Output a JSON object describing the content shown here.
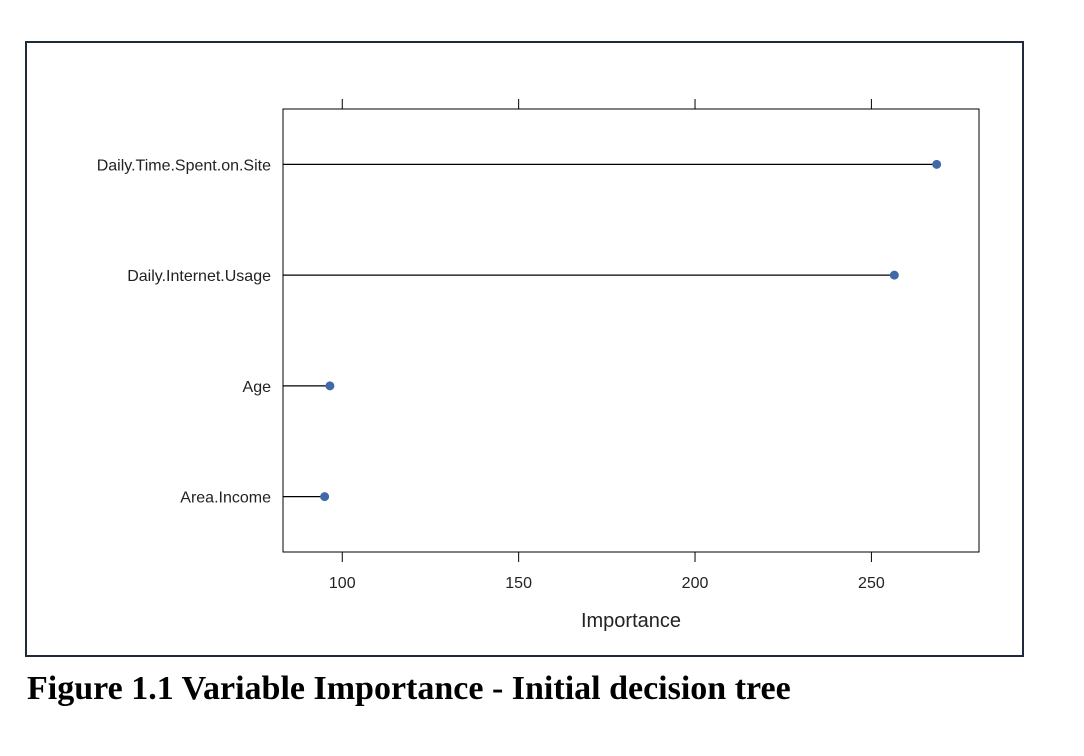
{
  "caption": "Figure 1.1 Variable Importance - Initial decision tree",
  "chart_data": {
    "type": "dot",
    "title": "",
    "xlabel": "Importance",
    "ylabel": "",
    "categories": [
      "Daily.Time.Spent.on.Site",
      "Daily.Internet.Usage",
      "Age",
      "Area.Income"
    ],
    "values": [
      268.5,
      256.5,
      96.5,
      95
    ],
    "xlim": [
      83.2,
      280.5
    ],
    "xticks": [
      100,
      150,
      200,
      250
    ],
    "point_color": "#4169a8",
    "line_color": "#000000",
    "grid": false
  }
}
